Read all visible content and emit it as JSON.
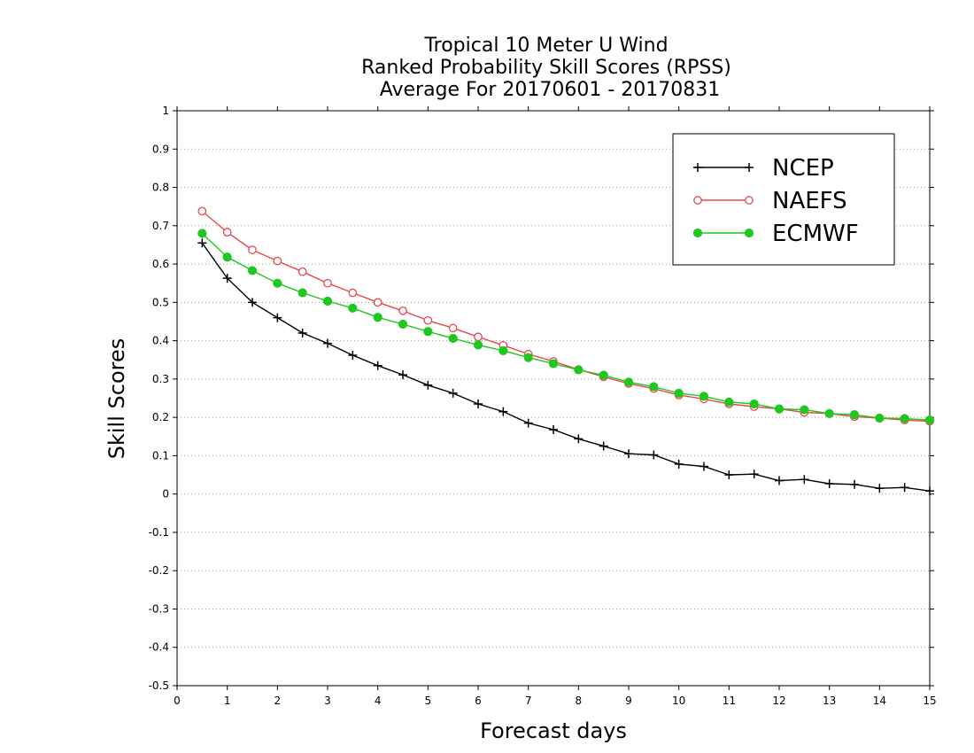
{
  "chart_data": {
    "type": "line",
    "title_lines": [
      "Tropical 10 Meter U Wind",
      "Ranked Probability Skill Scores (RPSS)",
      "Average For 20170601 - 20170831"
    ],
    "xlabel": "Forecast days",
    "ylabel": "Skill Scores",
    "xlim": [
      0,
      15
    ],
    "ylim": [
      -0.5,
      1
    ],
    "xticks": [
      0,
      1,
      2,
      3,
      4,
      5,
      6,
      7,
      8,
      9,
      10,
      11,
      12,
      13,
      14,
      15
    ],
    "xtick_labels": [
      "0",
      "1",
      "2",
      "3",
      "4",
      "5",
      "6",
      "7",
      "8",
      "9",
      "10",
      "11",
      "12",
      "13",
      "14",
      "15"
    ],
    "yticks": [
      -0.5,
      -0.4,
      -0.3,
      -0.2,
      -0.1,
      0,
      0.1,
      0.2,
      0.3,
      0.4,
      0.5,
      0.6,
      0.7,
      0.8,
      0.9,
      1
    ],
    "ytick_labels": [
      "-0.5",
      "-0.4",
      "-0.3",
      "-0.2",
      "-0.1",
      "0",
      "0.1",
      "0.2",
      "0.3",
      "0.4",
      "0.5",
      "0.6",
      "0.7",
      "0.8",
      "0.9",
      "1"
    ],
    "grid": "horizontal dotted",
    "legend_position": "top-right",
    "x": [
      0.5,
      1,
      1.5,
      2,
      2.5,
      3,
      3.5,
      4,
      4.5,
      5,
      5.5,
      6,
      6.5,
      7,
      7.5,
      8,
      8.5,
      9,
      9.5,
      10,
      10.5,
      11,
      11.5,
      12,
      12.5,
      13,
      13.5,
      14,
      14.5,
      15
    ],
    "series": [
      {
        "name": "NCEP",
        "color": "#000000",
        "marker": "plus",
        "values": [
          0.655,
          0.563,
          0.5,
          0.46,
          0.42,
          0.393,
          0.362,
          0.335,
          0.311,
          0.284,
          0.263,
          0.235,
          0.215,
          0.185,
          0.168,
          0.144,
          0.125,
          0.105,
          0.102,
          0.078,
          0.072,
          0.05,
          0.052,
          0.035,
          0.038,
          0.027,
          0.025,
          0.015,
          0.017,
          0.008
        ]
      },
      {
        "name": "NAEFS",
        "color": "#e8474c",
        "marker": "open-circle",
        "values": [
          0.738,
          0.683,
          0.637,
          0.608,
          0.58,
          0.55,
          0.525,
          0.5,
          0.478,
          0.453,
          0.433,
          0.41,
          0.388,
          0.365,
          0.346,
          0.325,
          0.306,
          0.288,
          0.275,
          0.258,
          0.248,
          0.235,
          0.228,
          0.222,
          0.213,
          0.21,
          0.202,
          0.198,
          0.193,
          0.19
        ]
      },
      {
        "name": "ECMWF",
        "color": "#1ec81e",
        "marker": "filled-circle",
        "values": [
          0.68,
          0.618,
          0.583,
          0.55,
          0.525,
          0.503,
          0.485,
          0.461,
          0.443,
          0.424,
          0.406,
          0.389,
          0.374,
          0.356,
          0.34,
          0.324,
          0.31,
          0.292,
          0.28,
          0.263,
          0.255,
          0.24,
          0.235,
          0.222,
          0.22,
          0.21,
          0.207,
          0.198,
          0.197,
          0.193
        ]
      }
    ]
  }
}
